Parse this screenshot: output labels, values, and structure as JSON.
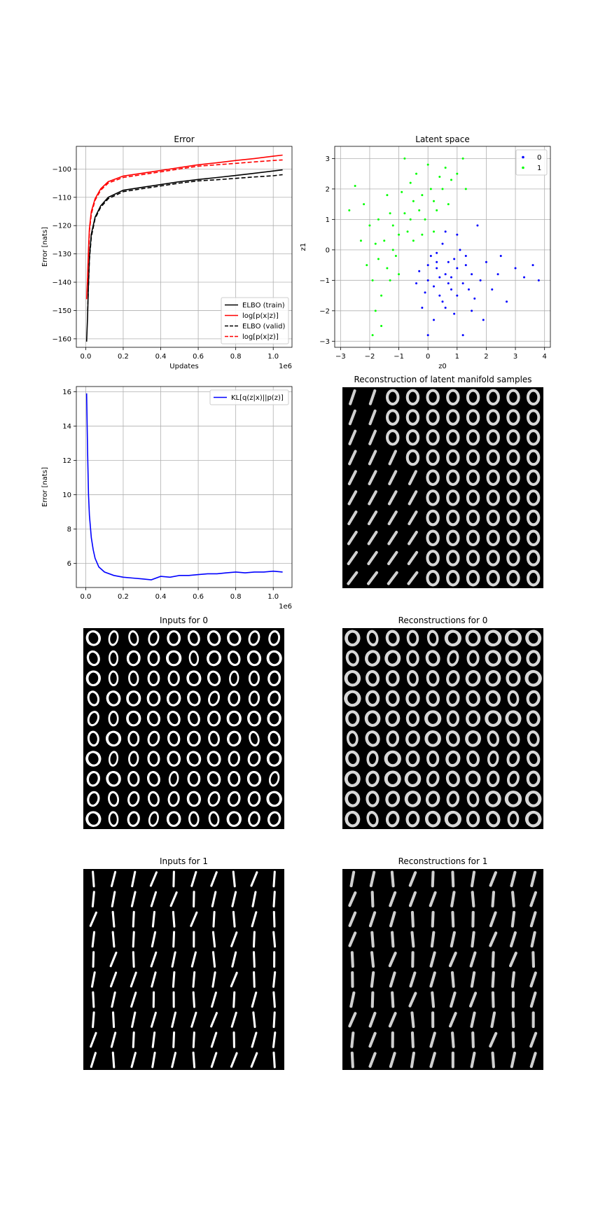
{
  "chart_data": [
    {
      "type": "line",
      "title": "Error",
      "xlabel": "Updates",
      "ylabel": "Error [nats]",
      "x_offset_label": "1e6",
      "xlim": [
        -0.05,
        1.1
      ],
      "ylim": [
        -163,
        -92
      ],
      "xticks": [
        0.0,
        0.2,
        0.4,
        0.6,
        0.8,
        1.0
      ],
      "xtick_labels": [
        "0.0",
        "0.2",
        "0.4",
        "0.6",
        "0.8",
        "1.0"
      ],
      "yticks": [
        -160,
        -150,
        -140,
        -130,
        -120,
        -110,
        -100
      ],
      "ytick_labels": [
        "−160",
        "−150",
        "−140",
        "−130",
        "−120",
        "−110",
        "−100"
      ],
      "grid": true,
      "legend": "lower-right",
      "series": [
        {
          "name": "ELBO (train)",
          "color": "#000000",
          "dash": "solid",
          "x": [
            0.005,
            0.01,
            0.015,
            0.02,
            0.03,
            0.05,
            0.08,
            0.12,
            0.2,
            0.3,
            0.4,
            0.5,
            0.6,
            0.7,
            0.8,
            0.9,
            1.0,
            1.05
          ],
          "y": [
            -161,
            -152,
            -140,
            -131,
            -123,
            -117,
            -113,
            -110,
            -107.5,
            -106.5,
            -105.5,
            -104.5,
            -103.7,
            -103,
            -102.3,
            -101.5,
            -100.7,
            -100.3
          ]
        },
        {
          "name": "log[p(x|z)]",
          "color": "#ff0000",
          "dash": "solid",
          "x": [
            0.005,
            0.01,
            0.015,
            0.02,
            0.03,
            0.05,
            0.08,
            0.12,
            0.2,
            0.3,
            0.4,
            0.5,
            0.6,
            0.7,
            0.8,
            0.9,
            1.0,
            1.05
          ],
          "y": [
            -146,
            -138,
            -128,
            -121,
            -115,
            -110.5,
            -107,
            -104.5,
            -102.5,
            -101.5,
            -100.5,
            -99.5,
            -98.5,
            -97.8,
            -97,
            -96.3,
            -95.5,
            -95.1
          ]
        },
        {
          "name": "ELBO (valid)",
          "color": "#000000",
          "dash": "dashed",
          "x": [
            0.01,
            0.02,
            0.03,
            0.05,
            0.08,
            0.12,
            0.2,
            0.3,
            0.4,
            0.5,
            0.6,
            0.7,
            0.8,
            0.9,
            1.0,
            1.05
          ],
          "y": [
            -150,
            -132,
            -124,
            -117.5,
            -113.5,
            -110.5,
            -108,
            -107,
            -106,
            -105,
            -104.2,
            -103.8,
            -103.3,
            -102.8,
            -102.4,
            -102
          ]
        },
        {
          "name": "log[p(x|z)]",
          "color": "#ff0000",
          "dash": "dashed",
          "x": [
            0.01,
            0.02,
            0.03,
            0.05,
            0.08,
            0.12,
            0.2,
            0.3,
            0.4,
            0.5,
            0.6,
            0.7,
            0.8,
            0.9,
            1.0,
            1.05
          ],
          "y": [
            -140,
            -122,
            -116,
            -111,
            -107.5,
            -105,
            -103,
            -102,
            -101,
            -100,
            -99,
            -98.5,
            -98,
            -97.5,
            -97,
            -96.8
          ]
        }
      ]
    },
    {
      "type": "scatter",
      "title": "Latent space",
      "xlabel": "z0",
      "ylabel": "z1",
      "xlim": [
        -3.2,
        4.2
      ],
      "ylim": [
        -3.2,
        3.4
      ],
      "xticks": [
        -3,
        -2,
        -1,
        0,
        1,
        2,
        3,
        4
      ],
      "xtick_labels": [
        "−3",
        "−2",
        "−1",
        "0",
        "1",
        "2",
        "3",
        "4"
      ],
      "yticks": [
        -3,
        -2,
        -1,
        0,
        1,
        2,
        3
      ],
      "ytick_labels": [
        "−3",
        "−2",
        "−1",
        "0",
        "1",
        "2",
        "3"
      ],
      "grid": true,
      "legend": "top-right",
      "series": [
        {
          "name": "0",
          "color": "#0000ff",
          "points": [
            [
              0.0,
              -1.0
            ],
            [
              0.3,
              -0.6
            ],
            [
              0.6,
              -0.8
            ],
            [
              0.9,
              -0.3
            ],
            [
              1.2,
              -1.1
            ],
            [
              0.4,
              -1.5
            ],
            [
              0.1,
              -0.2
            ],
            [
              0.8,
              -1.3
            ],
            [
              1.5,
              -0.8
            ],
            [
              -0.3,
              -0.7
            ],
            [
              0.5,
              0.2
            ],
            [
              1.0,
              -0.6
            ],
            [
              0.2,
              -1.2
            ],
            [
              0.7,
              -0.4
            ],
            [
              1.3,
              -0.5
            ],
            [
              -0.1,
              -1.4
            ],
            [
              0.6,
              -1.9
            ],
            [
              1.8,
              -1.0
            ],
            [
              0.4,
              -0.9
            ],
            [
              1.1,
              0.0
            ],
            [
              0.9,
              -2.1
            ],
            [
              2.0,
              -0.4
            ],
            [
              -0.4,
              -1.1
            ],
            [
              0.3,
              -0.1
            ],
            [
              1.6,
              -1.6
            ],
            [
              0.0,
              -0.5
            ],
            [
              0.8,
              -0.9
            ],
            [
              1.4,
              -1.3
            ],
            [
              0.5,
              -1.7
            ],
            [
              2.4,
              -0.8
            ],
            [
              3.0,
              -0.6
            ],
            [
              3.6,
              -0.5
            ],
            [
              3.8,
              -1.0
            ],
            [
              2.7,
              -1.7
            ],
            [
              1.2,
              -2.8
            ],
            [
              0.0,
              -2.8
            ],
            [
              1.7,
              0.8
            ],
            [
              1.0,
              0.5
            ],
            [
              -0.2,
              -1.9
            ],
            [
              2.2,
              -1.3
            ],
            [
              1.9,
              -2.3
            ],
            [
              0.6,
              0.6
            ],
            [
              2.5,
              -0.2
            ],
            [
              3.3,
              -0.9
            ],
            [
              0.2,
              -2.3
            ],
            [
              1.5,
              -2.0
            ],
            [
              0.7,
              -1.1
            ],
            [
              1.0,
              -1.5
            ],
            [
              0.3,
              -0.4
            ],
            [
              1.3,
              -0.2
            ]
          ]
        },
        {
          "name": "1",
          "color": "#00ff00",
          "points": [
            [
              -1.5,
              0.3
            ],
            [
              -1.2,
              0.8
            ],
            [
              -0.8,
              1.2
            ],
            [
              -0.5,
              1.6
            ],
            [
              -0.2,
              1.8
            ],
            [
              0.1,
              2.0
            ],
            [
              0.4,
              2.4
            ],
            [
              -1.7,
              -0.3
            ],
            [
              -1.4,
              -0.6
            ],
            [
              -1.0,
              0.5
            ],
            [
              -0.6,
              1.0
            ],
            [
              -0.3,
              1.3
            ],
            [
              0.2,
              1.6
            ],
            [
              0.5,
              2.0
            ],
            [
              0.8,
              2.3
            ],
            [
              -1.9,
              -1.0
            ],
            [
              -1.6,
              -1.5
            ],
            [
              -2.0,
              0.8
            ],
            [
              -1.3,
              1.2
            ],
            [
              -0.9,
              1.9
            ],
            [
              -0.4,
              2.5
            ],
            [
              0.0,
              2.8
            ],
            [
              0.6,
              2.7
            ],
            [
              1.0,
              2.5
            ],
            [
              -2.2,
              1.5
            ],
            [
              -1.8,
              0.2
            ],
            [
              -1.1,
              -0.2
            ],
            [
              -0.7,
              0.6
            ],
            [
              -0.1,
              1.0
            ],
            [
              0.3,
              1.3
            ],
            [
              -2.5,
              2.1
            ],
            [
              -2.7,
              1.3
            ],
            [
              -2.3,
              0.3
            ],
            [
              -1.8,
              -2.0
            ],
            [
              -1.6,
              -2.5
            ],
            [
              -1.9,
              -2.8
            ],
            [
              -0.8,
              3.0
            ],
            [
              1.2,
              3.0
            ],
            [
              1.3,
              2.0
            ],
            [
              -1.3,
              -1.0
            ],
            [
              -1.0,
              -0.8
            ],
            [
              -0.5,
              0.3
            ],
            [
              0.2,
              0.6
            ],
            [
              -2.1,
              -0.5
            ],
            [
              -1.4,
              1.8
            ],
            [
              -0.6,
              2.2
            ],
            [
              0.7,
              1.5
            ],
            [
              -1.2,
              0.0
            ],
            [
              -1.7,
              1.0
            ],
            [
              -0.2,
              0.5
            ]
          ]
        }
      ]
    },
    {
      "type": "line",
      "title": "",
      "xlabel": "",
      "ylabel": "Error [nats]",
      "x_offset_label": "1e6",
      "xlim": [
        -0.05,
        1.1
      ],
      "ylim": [
        4.6,
        16.3
      ],
      "xticks": [
        0.0,
        0.2,
        0.4,
        0.6,
        0.8,
        1.0
      ],
      "xtick_labels": [
        "0.0",
        "0.2",
        "0.4",
        "0.6",
        "0.8",
        "1.0"
      ],
      "yticks": [
        6,
        8,
        10,
        12,
        14,
        16
      ],
      "ytick_labels": [
        "6",
        "8",
        "10",
        "12",
        "14",
        "16"
      ],
      "grid": true,
      "legend": "top-right",
      "series": [
        {
          "name": "KL[q(z|x)||p(z)]",
          "color": "#0000ff",
          "dash": "solid",
          "x": [
            0.005,
            0.01,
            0.015,
            0.02,
            0.03,
            0.04,
            0.05,
            0.07,
            0.1,
            0.15,
            0.2,
            0.25,
            0.3,
            0.35,
            0.4,
            0.45,
            0.5,
            0.55,
            0.6,
            0.65,
            0.7,
            0.75,
            0.8,
            0.85,
            0.9,
            0.95,
            1.0,
            1.05
          ],
          "y": [
            15.9,
            12.5,
            10.0,
            8.8,
            7.5,
            6.8,
            6.3,
            5.8,
            5.5,
            5.3,
            5.2,
            5.15,
            5.1,
            5.05,
            5.25,
            5.2,
            5.3,
            5.3,
            5.35,
            5.4,
            5.4,
            5.45,
            5.5,
            5.45,
            5.5,
            5.5,
            5.55,
            5.5
          ]
        }
      ]
    }
  ],
  "image_panels": [
    {
      "title": "Reconstruction of latent manifold samples"
    },
    {
      "title": "Inputs for 0"
    },
    {
      "title": "Reconstructions for 0"
    },
    {
      "title": "Inputs for 1"
    },
    {
      "title": "Reconstructions for 1"
    }
  ]
}
